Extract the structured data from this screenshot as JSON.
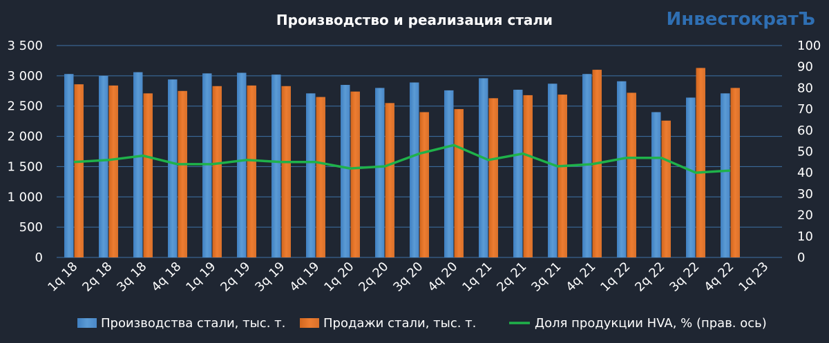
{
  "brand": "ИнвестократЪ",
  "colors": {
    "background": "#1f2632",
    "production": "#5b9bd5",
    "sales": "#ed7d31",
    "hva": "#1fb24a",
    "grid": "#3f73a8",
    "brand": "#2f6fb3"
  },
  "chart_data": {
    "type": "bar",
    "title": "Производство и реализация стали",
    "categories": [
      "1q 18",
      "2q 18",
      "3q 18",
      "4q 18",
      "1q 19",
      "2q 19",
      "3q 19",
      "4q 19",
      "1q 20",
      "2q 20",
      "3q 20",
      "4q 20",
      "1q 21",
      "2q 21",
      "3q 21",
      "4q 21",
      "1q 22",
      "2q 22",
      "3q 22",
      "4q 22",
      "1q 23"
    ],
    "ylim": [
      0,
      3500
    ],
    "yticks": [
      "0",
      "500",
      "1 000",
      "1 500",
      "2 000",
      "2 500",
      "3 000",
      "3 500"
    ],
    "y2lim": [
      0,
      100
    ],
    "y2ticks": [
      "0",
      "10",
      "20",
      "30",
      "40",
      "50",
      "60",
      "70",
      "80",
      "90",
      "100"
    ],
    "grid": true,
    "legend_position": "bottom",
    "series": [
      {
        "name": "Производства стали, тыс. т.",
        "type": "bar",
        "axis": "left",
        "values": [
          3030,
          3000,
          3060,
          2940,
          3040,
          3050,
          3020,
          2710,
          2850,
          2800,
          2890,
          2760,
          2960,
          2770,
          2870,
          3030,
          2910,
          2400,
          2640,
          2710,
          null
        ]
      },
      {
        "name": "Продажи стали, тыс. т.",
        "type": "bar",
        "axis": "left",
        "values": [
          2860,
          2840,
          2710,
          2750,
          2830,
          2840,
          2830,
          2650,
          2740,
          2550,
          2400,
          2450,
          2630,
          2680,
          2690,
          3100,
          2720,
          2260,
          3130,
          2800,
          null
        ]
      },
      {
        "name": "Доля продукции HVA, % (прав. ось)",
        "type": "line",
        "axis": "right",
        "values": [
          45,
          46,
          48,
          44,
          44,
          46,
          45,
          45,
          42,
          43,
          49,
          53,
          46,
          49,
          43,
          44,
          47,
          47,
          40,
          41,
          null
        ]
      }
    ]
  }
}
